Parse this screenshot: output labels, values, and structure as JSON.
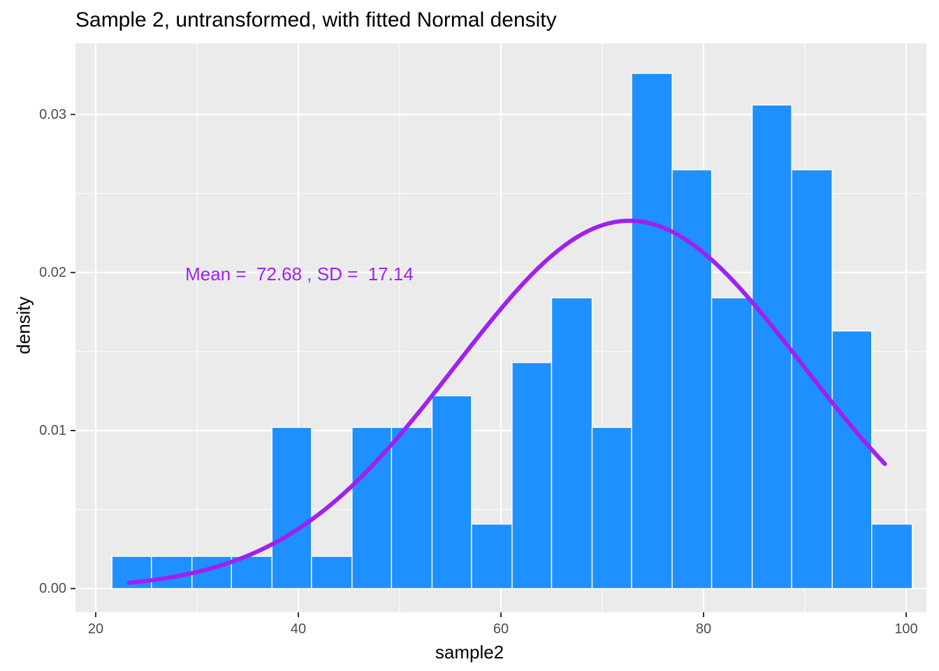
{
  "chart_data": {
    "type": "bar",
    "title": "Sample 2, untransformed, with fitted Normal density",
    "xlabel": "sample2",
    "ylabel": "density",
    "xlim": [
      18,
      102
    ],
    "ylim": [
      -0.0015,
      0.0345
    ],
    "x_ticks": [
      20,
      40,
      60,
      80,
      100
    ],
    "y_ticks": [
      0.0,
      0.01,
      0.02,
      0.03
    ],
    "x_tick_labels": [
      "20",
      "40",
      "60",
      "80",
      "100"
    ],
    "y_tick_labels": [
      "0.00",
      "0.01",
      "0.02",
      "0.03"
    ],
    "grid": true,
    "bins": [
      {
        "x0": 21.6,
        "x1": 25.5,
        "density": 0.00204
      },
      {
        "x0": 25.5,
        "x1": 29.5,
        "density": 0.00204
      },
      {
        "x0": 29.5,
        "x1": 33.4,
        "density": 0.00204
      },
      {
        "x0": 33.4,
        "x1": 37.4,
        "density": 0.00204
      },
      {
        "x0": 37.4,
        "x1": 41.3,
        "density": 0.0102
      },
      {
        "x0": 41.3,
        "x1": 45.3,
        "density": 0.00204
      },
      {
        "x0": 45.3,
        "x1": 49.2,
        "density": 0.0102
      },
      {
        "x0": 49.2,
        "x1": 53.2,
        "density": 0.0102
      },
      {
        "x0": 53.2,
        "x1": 57.1,
        "density": 0.0122
      },
      {
        "x0": 57.1,
        "x1": 61.1,
        "density": 0.00408
      },
      {
        "x0": 61.1,
        "x1": 65.0,
        "density": 0.0143
      },
      {
        "x0": 65.0,
        "x1": 69.0,
        "density": 0.0184
      },
      {
        "x0": 69.0,
        "x1": 72.9,
        "density": 0.0102
      },
      {
        "x0": 72.9,
        "x1": 76.9,
        "density": 0.0326
      },
      {
        "x0": 76.9,
        "x1": 80.8,
        "density": 0.0265
      },
      {
        "x0": 80.8,
        "x1": 84.8,
        "density": 0.0184
      },
      {
        "x0": 84.8,
        "x1": 88.7,
        "density": 0.0306
      },
      {
        "x0": 88.7,
        "x1": 92.7,
        "density": 0.0265
      },
      {
        "x0": 92.7,
        "x1": 96.6,
        "density": 0.0163
      },
      {
        "x0": 96.6,
        "x1": 100.6,
        "density": 0.00408
      }
    ],
    "normal_curve": {
      "mean": 72.68,
      "sd": 17.14,
      "x_from": 23.3,
      "x_to": 97.9
    },
    "annotation": {
      "text": "Mean =  72.68 , SD =  17.14",
      "x": 40.1,
      "y": 0.0199
    },
    "colors": {
      "panel": "#EBEBEB",
      "grid_major": "#FFFFFF",
      "bar_fill": "#1E90FF",
      "bar_outline": "#FFFFFF",
      "curve": "#A020F0",
      "annotation": "#A020F0",
      "tick_text": "#4D4D4D"
    }
  }
}
